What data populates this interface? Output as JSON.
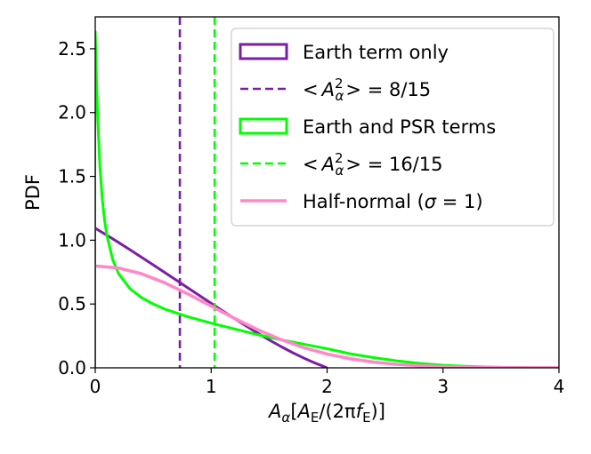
{
  "chart_data": {
    "type": "line",
    "title": "",
    "xlabel_parts": {
      "main": "A",
      "sub": "α",
      "open": "[",
      "a": "A",
      "a_sub": "E",
      "slash": "/(2π",
      "f": "f",
      "f_sub": "E",
      "close": ")]"
    },
    "ylabel": "PDF",
    "xlim": [
      0,
      4
    ],
    "ylim": [
      0,
      2.75
    ],
    "xticks": [
      0,
      1,
      2,
      3,
      4
    ],
    "xtick_labels": [
      "0",
      "1",
      "2",
      "3",
      "4"
    ],
    "yticks": [
      0.0,
      0.5,
      1.0,
      1.5,
      2.0,
      2.5
    ],
    "ytick_labels": [
      "0.0",
      "0.5",
      "1.0",
      "1.5",
      "2.0",
      "2.5"
    ],
    "grid": false,
    "legend_position": "top-right",
    "series": [
      {
        "name": "Earth term only",
        "style": "solid",
        "color": "#7b1fa2",
        "x": [
          0.0,
          0.1,
          0.2,
          0.3,
          0.4,
          0.5,
          0.6,
          0.7,
          0.8,
          0.9,
          1.0,
          1.1,
          1.2,
          1.3,
          1.4,
          1.5,
          1.6,
          1.7,
          1.8,
          1.9,
          2.0
        ],
        "y": [
          1.094,
          1.039,
          0.983,
          0.925,
          0.866,
          0.807,
          0.747,
          0.687,
          0.626,
          0.566,
          0.506,
          0.446,
          0.387,
          0.329,
          0.273,
          0.219,
          0.168,
          0.12,
          0.076,
          0.036,
          0.0
        ]
      },
      {
        "name": "<A_α²> = 8/15",
        "style": "dashed",
        "color": "#7b1fa2",
        "vline": 0.73
      },
      {
        "name": "Earth and PSR terms",
        "style": "solid",
        "color": "#00ff00",
        "x": [
          0.0,
          0.01,
          0.02,
          0.04,
          0.06,
          0.08,
          0.1,
          0.15,
          0.2,
          0.3,
          0.4,
          0.5,
          0.6,
          0.8,
          1.0,
          1.2,
          1.4,
          1.6,
          1.8,
          2.0,
          2.2,
          2.4,
          2.6,
          2.8,
          3.0,
          3.2,
          3.4,
          3.6,
          3.8,
          4.0
        ],
        "y": [
          2.64,
          2.28,
          1.98,
          1.58,
          1.33,
          1.16,
          1.04,
          0.85,
          0.74,
          0.62,
          0.55,
          0.5,
          0.46,
          0.4,
          0.35,
          0.305,
          0.26,
          0.22,
          0.185,
          0.15,
          0.11,
          0.08,
          0.055,
          0.035,
          0.02,
          0.012,
          0.006,
          0.003,
          0.001,
          0.0
        ]
      },
      {
        "name": "<A_α²> = 16/15",
        "style": "dashed",
        "color": "#00ff00",
        "vline": 1.03
      },
      {
        "name": "Half-normal (σ = 1)",
        "style": "solid",
        "color": "#ff88c8",
        "x": [
          0.0,
          0.2,
          0.4,
          0.6,
          0.8,
          1.0,
          1.2,
          1.4,
          1.6,
          1.8,
          2.0,
          2.2,
          2.4,
          2.6,
          2.8,
          3.0,
          3.2,
          3.4,
          3.6,
          3.8,
          4.0
        ],
        "y": [
          0.798,
          0.782,
          0.737,
          0.666,
          0.579,
          0.484,
          0.388,
          0.299,
          0.222,
          0.158,
          0.108,
          0.071,
          0.045,
          0.027,
          0.016,
          0.009,
          0.005,
          0.002,
          0.001,
          0.0005,
          0.0003
        ]
      }
    ],
    "legend": [
      {
        "label_parts": [
          "Earth term only"
        ],
        "kind": "patch",
        "color": "#7b1fa2"
      },
      {
        "label_parts": [
          "<",
          "A",
          "α",
          "2",
          "> = 8/15"
        ],
        "kind": "dashed",
        "color": "#7b1fa2"
      },
      {
        "label_parts": [
          "Earth and PSR terms"
        ],
        "kind": "patch",
        "color": "#00ff00"
      },
      {
        "label_parts": [
          "<",
          "A",
          "α",
          "2",
          "> = 16/15"
        ],
        "kind": "dashed",
        "color": "#00ff00"
      },
      {
        "label_parts": [
          "Half-normal (",
          "σ",
          " = 1)"
        ],
        "kind": "line",
        "color": "#ff88c8"
      }
    ]
  }
}
